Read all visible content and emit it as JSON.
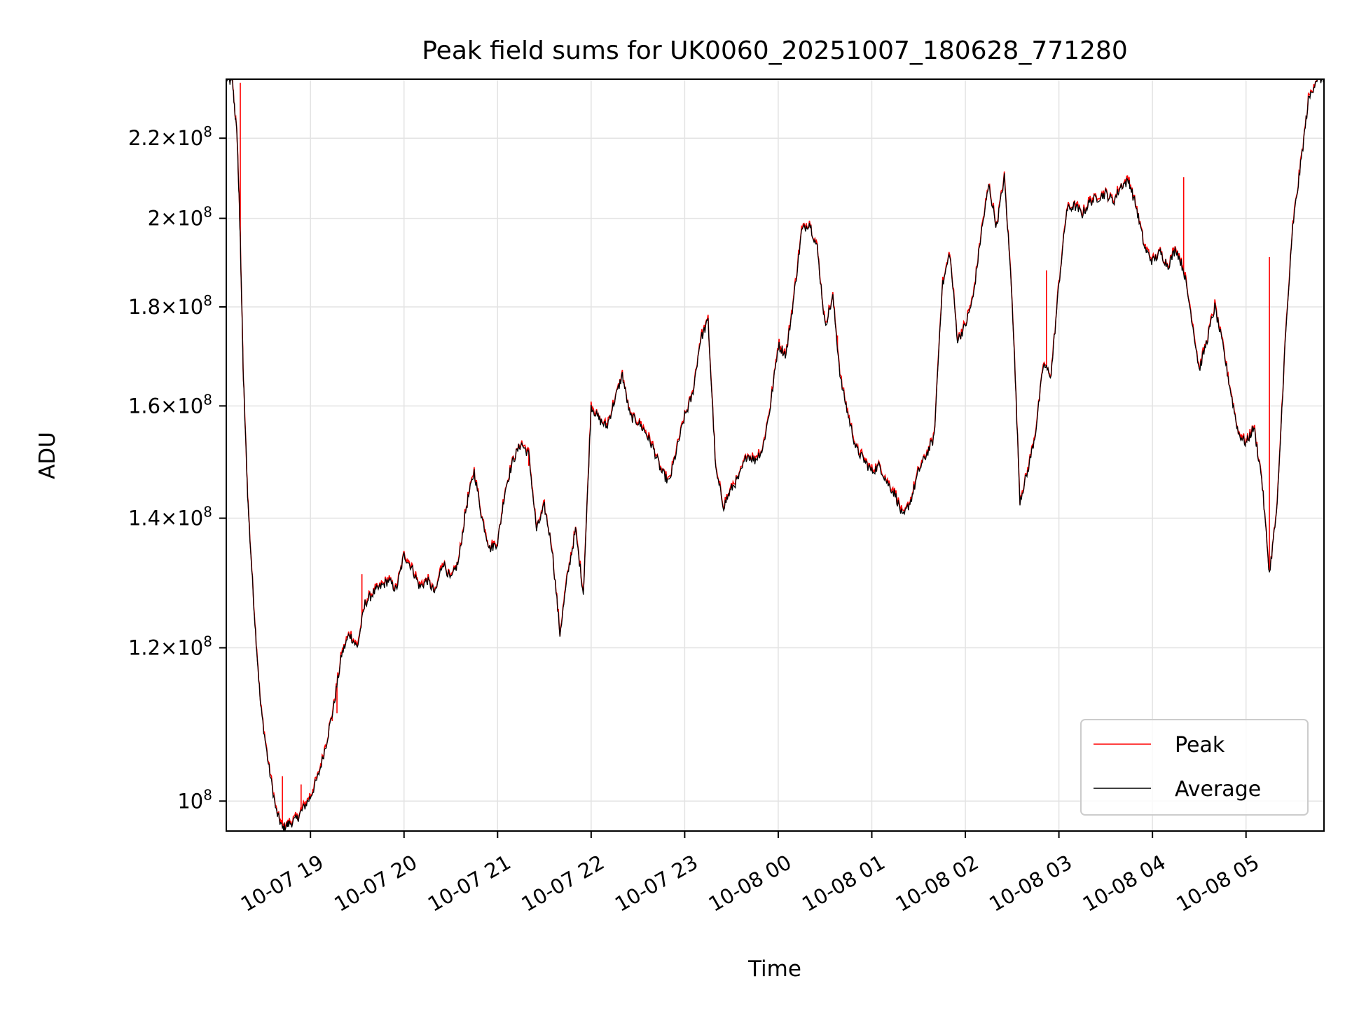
{
  "chart_data": {
    "type": "line",
    "title": "Peak field sums for UK0060_20251007_180628_771280",
    "xlabel": "Time",
    "ylabel": "ADU",
    "x_ticks": [
      "10-07 19",
      "10-07 20",
      "10-07 21",
      "10-07 22",
      "10-07 23",
      "10-08 00",
      "10-08 01",
      "10-08 02",
      "10-08 03",
      "10-08 04",
      "10-08 05"
    ],
    "y_ticks": [
      {
        "value": 100000000,
        "mant": "",
        "exp": "8"
      },
      {
        "value": 120000000,
        "mant": "1.2",
        "exp": "8"
      },
      {
        "value": 140000000,
        "mant": "1.4",
        "exp": "8"
      },
      {
        "value": 160000000,
        "mant": "1.6",
        "exp": "8"
      },
      {
        "value": 180000000,
        "mant": "1.8",
        "exp": "8"
      },
      {
        "value": 200000000,
        "mant": "2",
        "exp": "8"
      },
      {
        "value": 220000000,
        "mant": "2.2",
        "exp": "8"
      }
    ],
    "y_scale": "log",
    "ylim": [
      96500000,
      236000000
    ],
    "xlim": [
      "10-07 18:06",
      "10-08 05:50"
    ],
    "grid": true,
    "legend_position": "lower-right",
    "series": [
      {
        "name": "Peak",
        "color": "#ff0000"
      },
      {
        "name": "Average",
        "color": "#000000"
      }
    ],
    "average_points": [
      [
        "10-07 18:06",
        236000000.0
      ],
      [
        "10-07 18:10",
        235000000.0
      ],
      [
        "10-07 18:13",
        220000000.0
      ],
      [
        "10-07 18:15",
        195000000.0
      ],
      [
        "10-07 18:17",
        165000000.0
      ],
      [
        "10-07 18:20",
        142000000.0
      ],
      [
        "10-07 18:24",
        125000000.0
      ],
      [
        "10-07 18:28",
        112000000.0
      ],
      [
        "10-07 18:33",
        104500000.0
      ],
      [
        "10-07 18:38",
        98800000.0
      ],
      [
        "10-07 18:42",
        96800000.0
      ],
      [
        "10-07 18:46",
        97300000.0
      ],
      [
        "10-07 18:51",
        97800000.0
      ],
      [
        "10-07 18:55",
        99000000.0
      ],
      [
        "10-07 19:00",
        100500000.0
      ],
      [
        "10-07 19:05",
        103000000.0
      ],
      [
        "10-07 19:10",
        107000000.0
      ],
      [
        "10-07 19:15",
        112000000.0
      ],
      [
        "10-07 19:20",
        119000000.0
      ],
      [
        "10-07 19:25",
        122000000.0
      ],
      [
        "10-07 19:30",
        120000000.0
      ],
      [
        "10-07 19:35",
        126500000.0
      ],
      [
        "10-07 19:40",
        128000000.0
      ],
      [
        "10-07 19:45",
        129000000.0
      ],
      [
        "10-07 19:50",
        130000000.0
      ],
      [
        "10-07 19:55",
        128500000.0
      ],
      [
        "10-07 20:00",
        134000000.0
      ],
      [
        "10-07 20:05",
        132000000.0
      ],
      [
        "10-07 20:10",
        129000000.0
      ],
      [
        "10-07 20:15",
        130000000.0
      ],
      [
        "10-07 20:20",
        128000000.0
      ],
      [
        "10-07 20:25",
        133000000.0
      ],
      [
        "10-07 20:30",
        130000000.0
      ],
      [
        "10-07 20:35",
        133000000.0
      ],
      [
        "10-07 20:40",
        142000000.0
      ],
      [
        "10-07 20:45",
        148000000.0
      ],
      [
        "10-07 20:50",
        140000000.0
      ],
      [
        "10-07 20:55",
        135000000.0
      ],
      [
        "10-07 21:00",
        136000000.0
      ],
      [
        "10-07 21:05",
        145000000.0
      ],
      [
        "10-07 21:10",
        150000000.0
      ],
      [
        "10-07 21:15",
        153000000.0
      ],
      [
        "10-07 21:20",
        151000000.0
      ],
      [
        "10-07 21:25",
        138000000.0
      ],
      [
        "10-07 21:30",
        142000000.0
      ],
      [
        "10-07 21:35",
        135000000.0
      ],
      [
        "10-07 21:40",
        122000000.0
      ],
      [
        "10-07 21:45",
        131000000.0
      ],
      [
        "10-07 21:50",
        138000000.0
      ],
      [
        "10-07 21:55",
        128000000.0
      ],
      [
        "10-07 22:00",
        160000000.0
      ],
      [
        "10-07 22:05",
        157500000.0
      ],
      [
        "10-07 22:10",
        156000000.0
      ],
      [
        "10-07 22:15",
        161000000.0
      ],
      [
        "10-07 22:20",
        166000000.0
      ],
      [
        "10-07 22:25",
        158000000.0
      ],
      [
        "10-07 22:30",
        157000000.0
      ],
      [
        "10-07 22:35",
        155000000.0
      ],
      [
        "10-07 22:40",
        152000000.0
      ],
      [
        "10-07 22:45",
        148000000.0
      ],
      [
        "10-07 22:50",
        146000000.0
      ],
      [
        "10-07 22:55",
        152000000.0
      ],
      [
        "10-07 23:00",
        158000000.0
      ],
      [
        "10-07 23:05",
        162000000.0
      ],
      [
        "10-07 23:10",
        173000000.0
      ],
      [
        "10-07 23:15",
        177000000.0
      ],
      [
        "10-07 23:20",
        148000000.0
      ],
      [
        "10-07 23:25",
        142000000.0
      ],
      [
        "10-07 23:30",
        145000000.0
      ],
      [
        "10-07 23:35",
        147000000.0
      ],
      [
        "10-07 23:40",
        151000000.0
      ],
      [
        "10-07 23:45",
        150000000.0
      ],
      [
        "10-07 23:50",
        152000000.0
      ],
      [
        "10-07 23:55",
        160000000.0
      ],
      [
        "10-08 00:00",
        172000000.0
      ],
      [
        "10-08 00:05",
        170000000.0
      ],
      [
        "10-08 00:10",
        182000000.0
      ],
      [
        "10-08 00:15",
        197000000.0
      ],
      [
        "10-08 00:20",
        199000000.0
      ],
      [
        "10-08 00:25",
        193000000.0
      ],
      [
        "10-08 00:30",
        176000000.0
      ],
      [
        "10-08 00:35",
        182000000.0
      ],
      [
        "10-08 00:40",
        165000000.0
      ],
      [
        "10-08 00:45",
        158000000.0
      ],
      [
        "10-08 00:50",
        152000000.0
      ],
      [
        "10-08 00:55",
        150000000.0
      ],
      [
        "10-08 01:00",
        148000000.0
      ],
      [
        "10-08 01:05",
        149000000.0
      ],
      [
        "10-08 01:10",
        146000000.0
      ],
      [
        "10-08 01:15",
        144000000.0
      ],
      [
        "10-08 01:20",
        140000000.0
      ],
      [
        "10-08 01:25",
        143000000.0
      ],
      [
        "10-08 01:30",
        148000000.0
      ],
      [
        "10-08 01:35",
        151000000.0
      ],
      [
        "10-08 01:40",
        154000000.0
      ],
      [
        "10-08 01:45",
        184000000.0
      ],
      [
        "10-08 01:50",
        192000000.0
      ],
      [
        "10-08 01:55",
        173000000.0
      ],
      [
        "10-08 02:00",
        176000000.0
      ],
      [
        "10-08 02:05",
        182000000.0
      ],
      [
        "10-08 02:10",
        196000000.0
      ],
      [
        "10-08 02:15",
        208000000.0
      ],
      [
        "10-08 02:20",
        198000000.0
      ],
      [
        "10-08 02:25",
        210000000.0
      ],
      [
        "10-08 02:30",
        182000000.0
      ],
      [
        "10-08 02:35",
        143000000.0
      ],
      [
        "10-08 02:40",
        148000000.0
      ],
      [
        "10-08 02:45",
        155000000.0
      ],
      [
        "10-08 02:50",
        168000000.0
      ],
      [
        "10-08 02:55",
        166000000.0
      ],
      [
        "10-08 03:00",
        185000000.0
      ],
      [
        "10-08 03:05",
        202000000.0
      ],
      [
        "10-08 03:10",
        203000000.0
      ],
      [
        "10-08 03:15",
        201000000.0
      ],
      [
        "10-08 03:20",
        204000000.0
      ],
      [
        "10-08 03:25",
        205000000.0
      ],
      [
        "10-08 03:30",
        206000000.0
      ],
      [
        "10-08 03:35",
        204000000.0
      ],
      [
        "10-08 03:40",
        208000000.0
      ],
      [
        "10-08 03:45",
        209000000.0
      ],
      [
        "10-08 03:50",
        202000000.0
      ],
      [
        "10-08 03:55",
        193000000.0
      ],
      [
        "10-08 04:00",
        190000000.0
      ],
      [
        "10-08 04:05",
        192000000.0
      ],
      [
        "10-08 04:10",
        189000000.0
      ],
      [
        "10-08 04:15",
        193000000.0
      ],
      [
        "10-08 04:20",
        188000000.0
      ],
      [
        "10-08 04:25",
        178000000.0
      ],
      [
        "10-08 04:30",
        167000000.0
      ],
      [
        "10-08 04:35",
        173000000.0
      ],
      [
        "10-08 04:40",
        180000000.0
      ],
      [
        "10-08 04:45",
        172000000.0
      ],
      [
        "10-08 04:50",
        163000000.0
      ],
      [
        "10-08 04:55",
        155000000.0
      ],
      [
        "10-08 05:00",
        153000000.0
      ],
      [
        "10-08 05:05",
        156000000.0
      ],
      [
        "10-08 05:10",
        147000000.0
      ],
      [
        "10-08 05:15",
        131000000.0
      ],
      [
        "10-08 05:20",
        142000000.0
      ],
      [
        "10-08 05:25",
        172000000.0
      ],
      [
        "10-08 05:30",
        198000000.0
      ],
      [
        "10-08 05:35",
        213000000.0
      ],
      [
        "10-08 05:40",
        230000000.0
      ],
      [
        "10-08 05:45",
        236000000.0
      ],
      [
        "10-08 05:50",
        236000000.0
      ]
    ],
    "peak_spikes": [
      [
        "10-07 18:15",
        235000000.0
      ],
      [
        "10-07 18:42",
        103000000.0
      ],
      [
        "10-07 18:54",
        102000000.0
      ],
      [
        "10-07 19:14",
        110000000.0
      ],
      [
        "10-07 19:17",
        111000000.0
      ],
      [
        "10-07 19:33",
        131000000.0
      ],
      [
        "10-07 21:20",
        149000000.0
      ],
      [
        "10-08 00:38",
        174000000.0
      ],
      [
        "10-08 02:52",
        188000000.0
      ],
      [
        "10-08 04:20",
        210000000.0
      ],
      [
        "10-08 05:15",
        191000000.0
      ]
    ]
  }
}
